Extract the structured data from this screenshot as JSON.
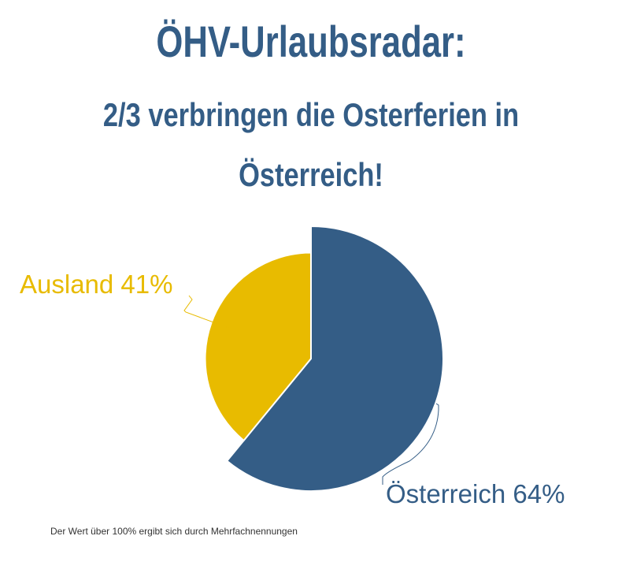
{
  "header": {
    "title": "ÖHV-Urlaubsradar:",
    "subtitle": "2/3 verbringen die Osterferien in Österreich!"
  },
  "chart_data": {
    "type": "pie",
    "categories": [
      "Österreich",
      "Ausland"
    ],
    "values": [
      64,
      41
    ],
    "unit": "%",
    "labels": [
      "Österreich 64%",
      "Ausland 41%"
    ],
    "colors": [
      "#345d86",
      "#e8bb00"
    ],
    "legend": "none"
  },
  "footnote": "Der Wert über 100% ergibt sich durch Mehrfachnennungen"
}
